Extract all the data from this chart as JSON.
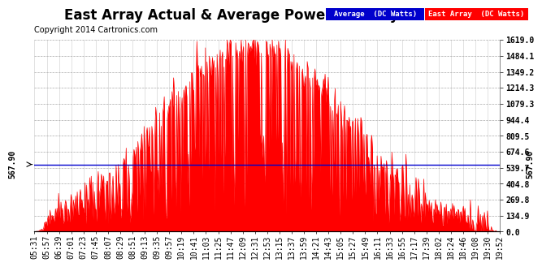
{
  "title": "East Array Actual & Average Power Tue May 20 20:10",
  "copyright": "Copyright 2014 Cartronics.com",
  "average_value": 567.9,
  "y_max": 1619.0,
  "y_min": 0.0,
  "ytick_values": [
    0.0,
    134.9,
    269.8,
    404.8,
    539.7,
    674.6,
    809.5,
    944.4,
    1079.3,
    1214.3,
    1349.2,
    1484.1,
    1619.0
  ],
  "xtick_labels": [
    "05:31",
    "05:57",
    "06:39",
    "07:01",
    "07:23",
    "07:45",
    "08:07",
    "08:29",
    "08:51",
    "09:13",
    "09:35",
    "09:57",
    "10:19",
    "10:41",
    "11:03",
    "11:25",
    "11:47",
    "12:09",
    "12:31",
    "12:53",
    "13:15",
    "13:37",
    "13:59",
    "14:21",
    "14:43",
    "15:05",
    "15:27",
    "15:49",
    "16:11",
    "16:33",
    "16:55",
    "17:17",
    "17:39",
    "18:02",
    "18:24",
    "18:46",
    "19:08",
    "19:30",
    "19:52"
  ],
  "bg_color": "#ffffff",
  "plot_bg_color": "#ffffff",
  "grid_color": "#aaaaaa",
  "line_color_avg": "#0000cc",
  "fill_color": "#ff0000",
  "legend_avg_bg": "#0000cc",
  "legend_east_bg": "#ff0000",
  "title_fontsize": 12,
  "copyright_fontsize": 7,
  "tick_fontsize": 7
}
